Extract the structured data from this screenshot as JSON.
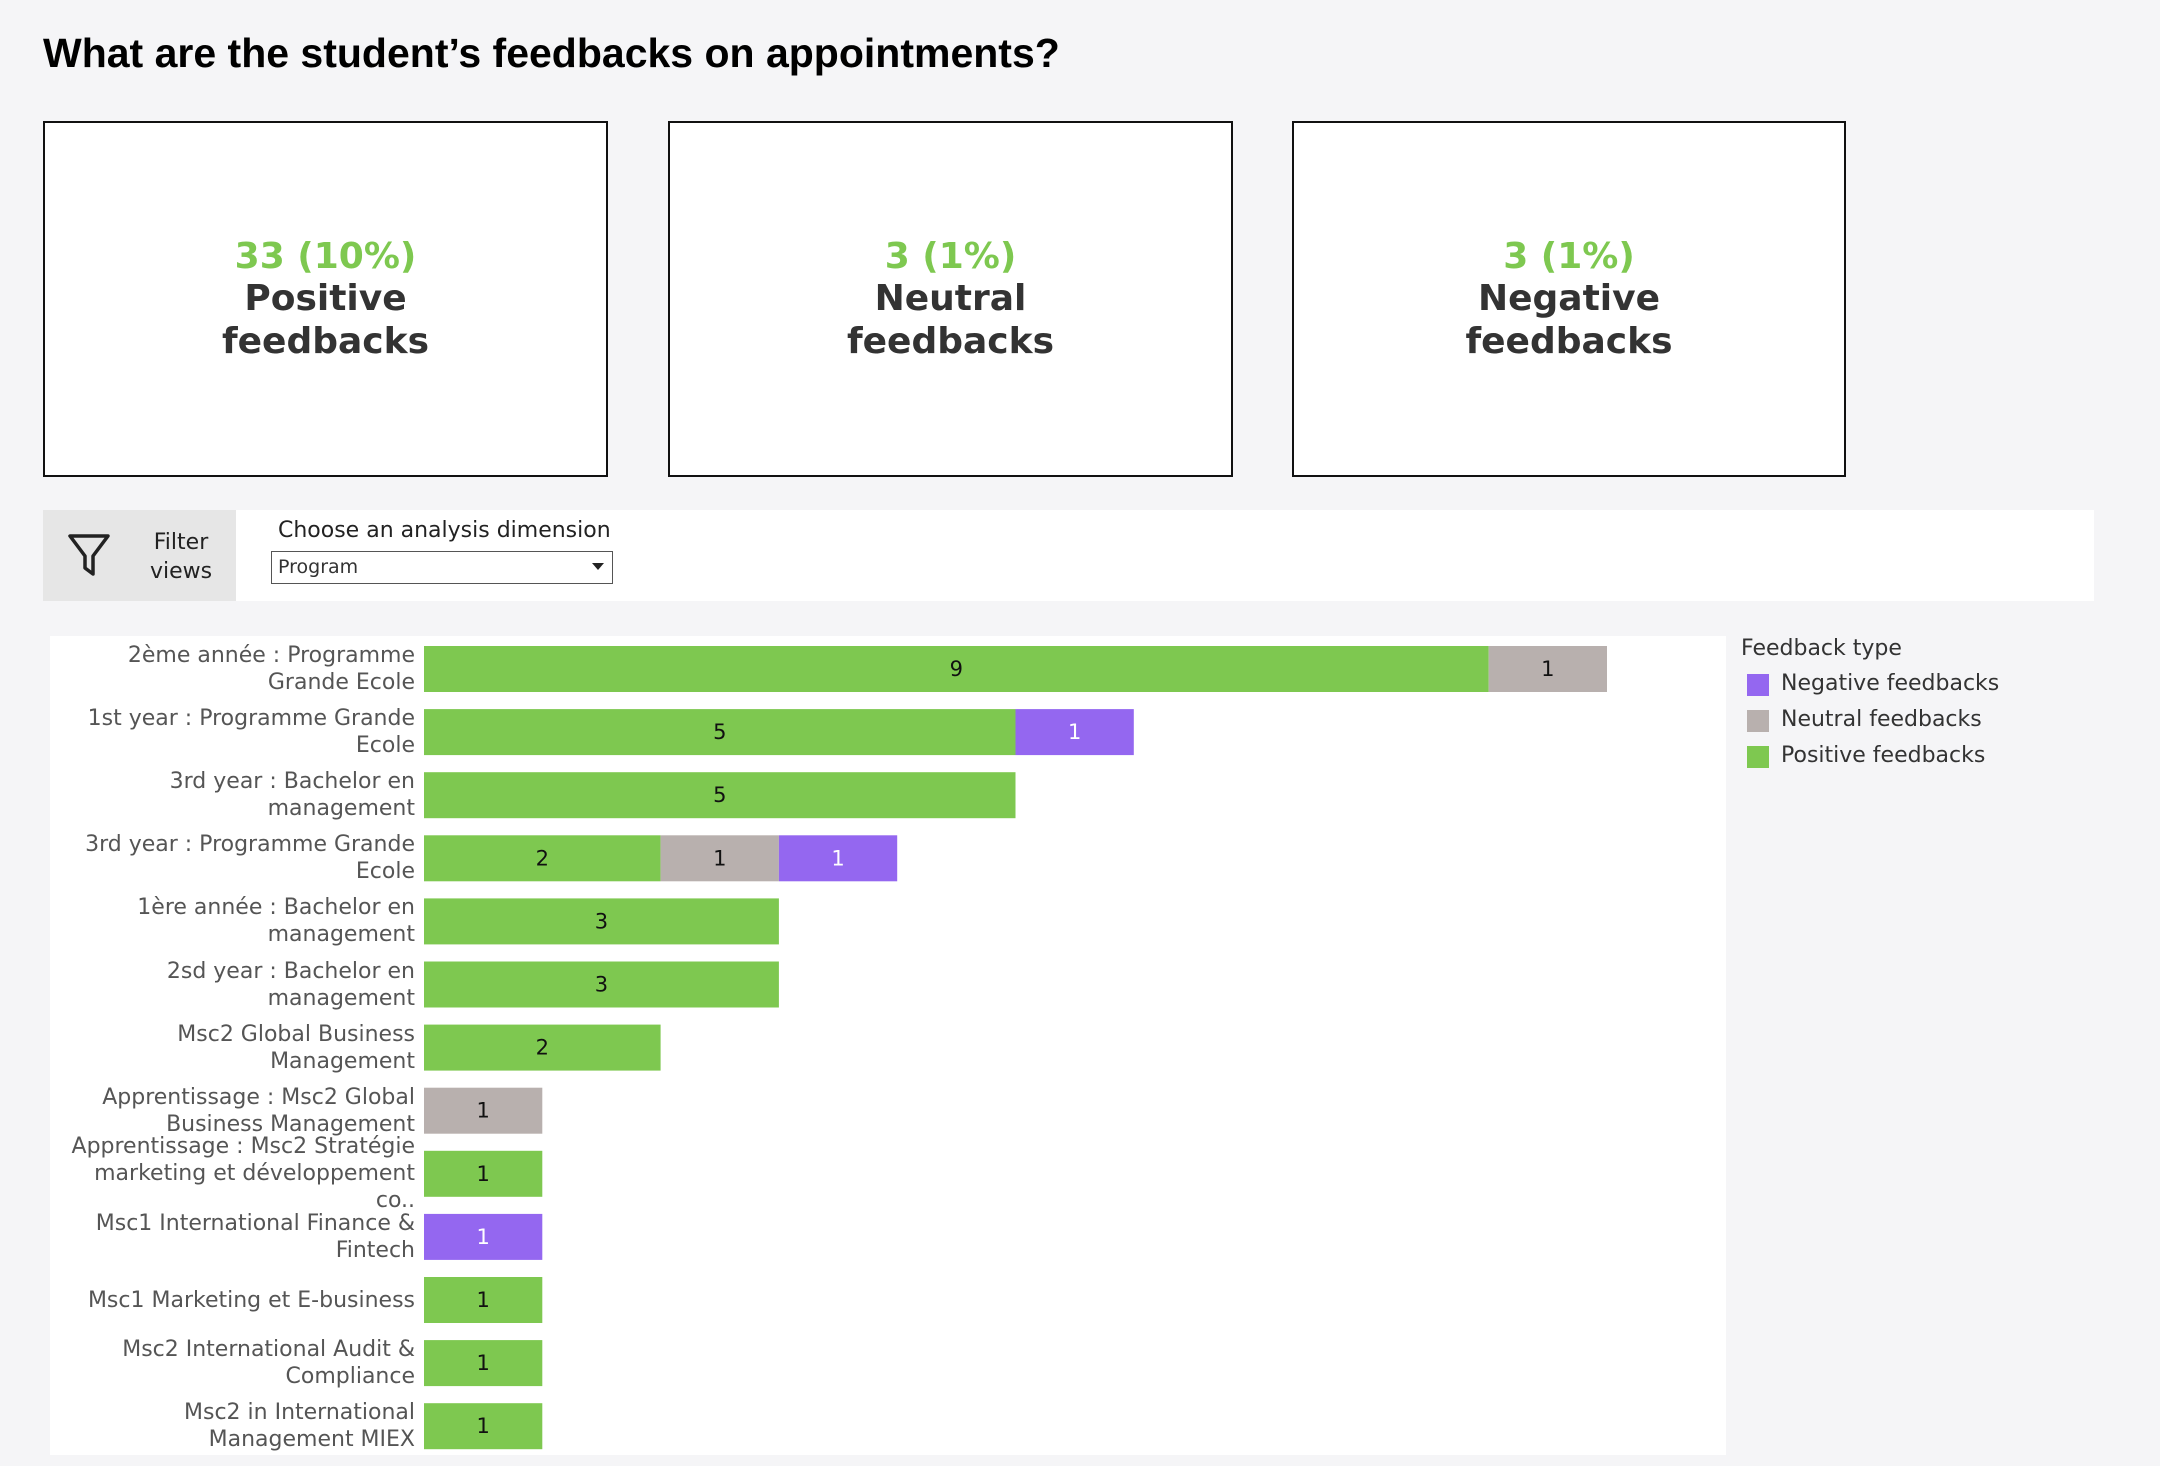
{
  "header": {
    "title": "What are the student’s feedbacks on appointments?"
  },
  "kpis": [
    {
      "value": "33 (10%)",
      "label": "Positive feedbacks"
    },
    {
      "value": "3 (1%)",
      "label": "Neutral feedbacks"
    },
    {
      "value": "3 (1%)",
      "label": "Negative feedbacks"
    }
  ],
  "filter": {
    "button": "Filter views",
    "label": "Choose an analysis dimension",
    "selected": "Program"
  },
  "chart_data": {
    "type": "bar",
    "orientation": "horizontal",
    "stacked": true,
    "legend_title": "Feedback type",
    "legend": "right",
    "categories": [
      "2ème année : Programme Grande Ecole",
      "1st year : Programme Grande Ecole",
      "3rd year : Bachelor en management",
      "3rd year :  Programme Grande Ecole",
      "1ère année : Bachelor en management",
      "2sd year : Bachelor en management",
      "Msc2 Global Business Management",
      "Apprentissage : Msc2 Global Business Management",
      "Apprentissage : Msc2 Stratégie marketing et développement co..",
      "Msc1 International Finance & Fintech",
      "Msc1 Marketing et E-business",
      "Msc2 International Audit & Compliance",
      "Msc2 in International Management MIEX"
    ],
    "series": [
      {
        "name": "Positive feedbacks",
        "color": "#7ec850",
        "values": [
          9,
          5,
          5,
          2,
          3,
          3,
          2,
          null,
          1,
          null,
          1,
          1,
          1
        ]
      },
      {
        "name": "Neutral feedbacks",
        "color": "#b8b0ae",
        "values": [
          1,
          null,
          null,
          1,
          null,
          null,
          null,
          1,
          null,
          null,
          null,
          null,
          null
        ]
      },
      {
        "name": "Negative feedbacks",
        "color": "#9467f0",
        "values": [
          null,
          1,
          null,
          1,
          null,
          null,
          null,
          null,
          null,
          1,
          null,
          null,
          null
        ]
      }
    ]
  }
}
